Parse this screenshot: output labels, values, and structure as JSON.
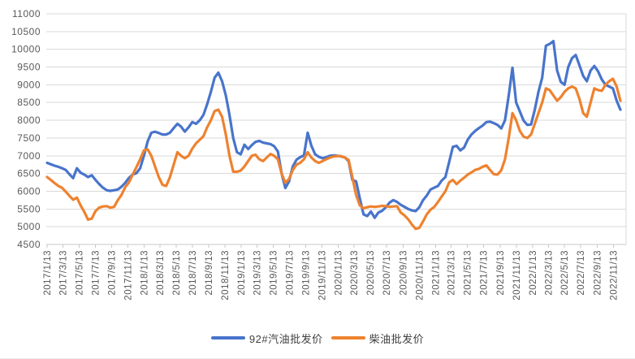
{
  "chart_data": {
    "type": "line",
    "title": "",
    "xlabel": "",
    "ylabel": "",
    "grid": "horizontal",
    "legend_position": "bottom",
    "y_axis": {
      "min": 4500,
      "max": 11000,
      "step": 500,
      "tick_labels": [
        "4500",
        "5000",
        "5500",
        "6000",
        "6500",
        "7000",
        "7500",
        "8000",
        "8500",
        "9000",
        "9500",
        "10000",
        "10500",
        "11000"
      ]
    },
    "x_tick_labels": [
      "2017/1/13",
      "2017/3/13",
      "2017/5/13",
      "2017/7/13",
      "2017/9/13",
      "2017/11/13",
      "2018/1/13",
      "2018/3/13",
      "2018/5/13",
      "2018/7/13",
      "2018/9/13",
      "2018/11/13",
      "2019/1/13",
      "2019/3/13",
      "2019/5/13",
      "2019/7/13",
      "2019/9/13",
      "2019/11/13",
      "2020/1/13",
      "2020/3/13",
      "2020/5/13",
      "2020/7/13",
      "2020/9/13",
      "2020/11/13",
      "2021/1/13",
      "2021/3/13",
      "2021/5/13",
      "2021/7/13",
      "2021/9/13",
      "2021/11/13",
      "2022/1/13",
      "2022/3/13",
      "2022/5/13",
      "2022/7/13",
      "2022/9/13",
      "2022/11/13"
    ],
    "sampling": {
      "start_date": "2017/1/13",
      "interval_days": 14
    },
    "series": [
      {
        "name": "92#汽油批发价",
        "color": "#4874CB",
        "values": [
          6800,
          6760,
          6720,
          6690,
          6650,
          6600,
          6480,
          6370,
          6650,
          6520,
          6470,
          6400,
          6450,
          6320,
          6200,
          6100,
          6030,
          6010,
          6030,
          6050,
          6130,
          6240,
          6380,
          6470,
          6510,
          6650,
          7000,
          7400,
          7650,
          7680,
          7640,
          7600,
          7600,
          7650,
          7780,
          7900,
          7820,
          7680,
          7800,
          7950,
          7900,
          8000,
          8150,
          8450,
          8800,
          9200,
          9340,
          9100,
          8700,
          8150,
          7500,
          7100,
          7040,
          7310,
          7190,
          7300,
          7390,
          7420,
          7370,
          7350,
          7330,
          7270,
          7120,
          6500,
          6090,
          6280,
          6700,
          6890,
          6960,
          7010,
          7650,
          7280,
          7040,
          6970,
          6930,
          6960,
          7000,
          7010,
          7000,
          6980,
          6950,
          6850,
          6320,
          6280,
          5800,
          5350,
          5300,
          5430,
          5250,
          5400,
          5450,
          5550,
          5680,
          5750,
          5700,
          5620,
          5560,
          5500,
          5460,
          5440,
          5550,
          5750,
          5880,
          6050,
          6100,
          6150,
          6300,
          6400,
          6820,
          7250,
          7280,
          7150,
          7230,
          7450,
          7600,
          7700,
          7780,
          7850,
          7950,
          7960,
          7920,
          7870,
          7770,
          8000,
          8700,
          9480,
          8500,
          8250,
          7990,
          7870,
          7880,
          8300,
          8800,
          9200,
          10100,
          10150,
          10230,
          9400,
          9080,
          9000,
          9500,
          9750,
          9840,
          9550,
          9250,
          9100,
          9400,
          9530,
          9380,
          9150,
          9000,
          8950,
          8900,
          8550,
          8300
        ]
      },
      {
        "name": "柴油批发价",
        "color": "#EE822F",
        "values": [
          6400,
          6320,
          6230,
          6150,
          6100,
          5990,
          5870,
          5760,
          5820,
          5600,
          5420,
          5200,
          5230,
          5440,
          5540,
          5570,
          5580,
          5540,
          5560,
          5750,
          5900,
          6120,
          6250,
          6470,
          6680,
          6900,
          7150,
          7180,
          7000,
          6700,
          6400,
          6180,
          6150,
          6400,
          6750,
          7100,
          7000,
          6930,
          7000,
          7200,
          7350,
          7450,
          7550,
          7800,
          8000,
          8260,
          8300,
          8100,
          7600,
          7000,
          6550,
          6550,
          6580,
          6700,
          6850,
          7000,
          7030,
          6900,
          6850,
          6950,
          7050,
          7000,
          6900,
          6500,
          6240,
          6350,
          6600,
          6750,
          6800,
          6900,
          7100,
          6950,
          6850,
          6800,
          6850,
          6900,
          6950,
          6980,
          6990,
          6990,
          6950,
          6880,
          6400,
          5900,
          5600,
          5520,
          5550,
          5570,
          5560,
          5570,
          5590,
          5580,
          5560,
          5570,
          5580,
          5400,
          5320,
          5210,
          5060,
          4940,
          4970,
          5150,
          5350,
          5480,
          5560,
          5700,
          5850,
          6000,
          6250,
          6320,
          6200,
          6300,
          6380,
          6470,
          6530,
          6600,
          6630,
          6690,
          6730,
          6600,
          6480,
          6470,
          6590,
          6900,
          7500,
          8200,
          8000,
          7700,
          7540,
          7500,
          7600,
          7900,
          8200,
          8500,
          8900,
          8850,
          8700,
          8550,
          8650,
          8800,
          8900,
          8950,
          8900,
          8600,
          8200,
          8100,
          8500,
          8900,
          8850,
          8830,
          9000,
          9100,
          9170,
          8950,
          8550
        ]
      }
    ]
  },
  "colors": {
    "background": "#FFFFFF",
    "gridline": "#D9D9D9",
    "axis": "#C9C9C9",
    "tick_text": "#595959",
    "legend_text": "#404040"
  }
}
